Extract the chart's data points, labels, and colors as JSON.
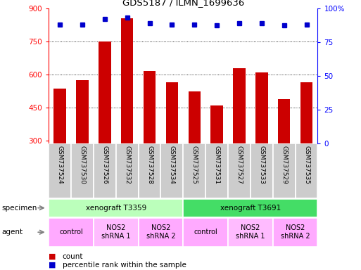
{
  "title": "GDS5187 / ILMN_1699636",
  "samples": [
    "GSM737524",
    "GSM737530",
    "GSM737526",
    "GSM737532",
    "GSM737528",
    "GSM737534",
    "GSM737525",
    "GSM737531",
    "GSM737527",
    "GSM737533",
    "GSM737529",
    "GSM737535"
  ],
  "counts": [
    535,
    575,
    750,
    855,
    615,
    565,
    525,
    460,
    630,
    610,
    490,
    565
  ],
  "percentiles": [
    88,
    88,
    92,
    93,
    89,
    88,
    88,
    87,
    89,
    89,
    87,
    88
  ],
  "bar_color": "#cc0000",
  "dot_color": "#0000cc",
  "ymin": 290,
  "ymax": 900,
  "yticks": [
    300,
    450,
    600,
    750,
    900
  ],
  "y2min": 0,
  "y2max": 100,
  "y2ticks": [
    0,
    25,
    50,
    75,
    100
  ],
  "grid_lines": [
    450,
    600,
    750
  ],
  "specimen_groups": [
    {
      "label": "xenograft T3359",
      "start": 0,
      "end": 6,
      "color": "#bbffbb"
    },
    {
      "label": "xenograft T3691",
      "start": 6,
      "end": 12,
      "color": "#44dd66"
    }
  ],
  "agent_groups": [
    {
      "label": "control",
      "start": 0,
      "end": 2,
      "color": "#ffaaff"
    },
    {
      "label": "NOS2\nshRNA 1",
      "start": 2,
      "end": 4,
      "color": "#ffbbff"
    },
    {
      "label": "NOS2\nshRNA 2",
      "start": 4,
      "end": 6,
      "color": "#ffaaff"
    },
    {
      "label": "control",
      "start": 6,
      "end": 8,
      "color": "#ffaaff"
    },
    {
      "label": "NOS2\nshRNA 1",
      "start": 8,
      "end": 10,
      "color": "#ffbbff"
    },
    {
      "label": "NOS2\nshRNA 2",
      "start": 10,
      "end": 12,
      "color": "#ffaaff"
    }
  ],
  "legend_count_label": "count",
  "legend_pct_label": "percentile rank within the sample",
  "bar_width": 0.55,
  "sample_bg_color": "#cccccc",
  "sample_bg_edge": "#ffffff",
  "left_label_color": "#555555",
  "spine_color": "#888888"
}
